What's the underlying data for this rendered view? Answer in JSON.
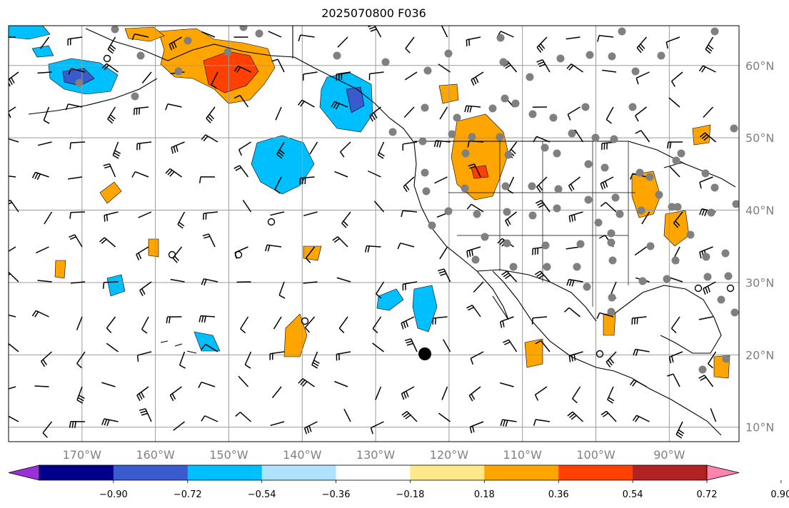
{
  "title": "2025070800 F036",
  "map": {
    "lon_labels": [
      "170°W",
      "160°W",
      "150°W",
      "140°W",
      "130°W",
      "120°W",
      "110°W",
      "100°W",
      "90°W"
    ],
    "lon_values": [
      -170,
      -160,
      -150,
      -140,
      -130,
      -120,
      -110,
      -100,
      -90
    ],
    "lat_labels": [
      "60°N",
      "50°N",
      "40°N",
      "30°N",
      "20°N",
      "10°N"
    ],
    "lat_values": [
      60,
      50,
      40,
      30,
      20,
      10
    ],
    "extent": {
      "lon_min": -180,
      "lon_max": -80.5,
      "lat_min": 8,
      "lat_max": 65.5
    },
    "gridline_color": "#9a9a9a"
  },
  "colorbar": {
    "tick_labels": [
      "−0.90",
      "−0.72",
      "−0.54",
      "−0.36",
      "−0.18",
      "0.18",
      "0.36",
      "0.54",
      "0.72",
      "0.90"
    ],
    "colors": [
      "#9b30d8",
      "#00008b",
      "#3a5bcd",
      "#00bfff",
      "#aee2ff",
      "#ffffff",
      "#ffe88a",
      "#ffa500",
      "#ff4000",
      "#b22222",
      "#ff85ae"
    ]
  }
}
